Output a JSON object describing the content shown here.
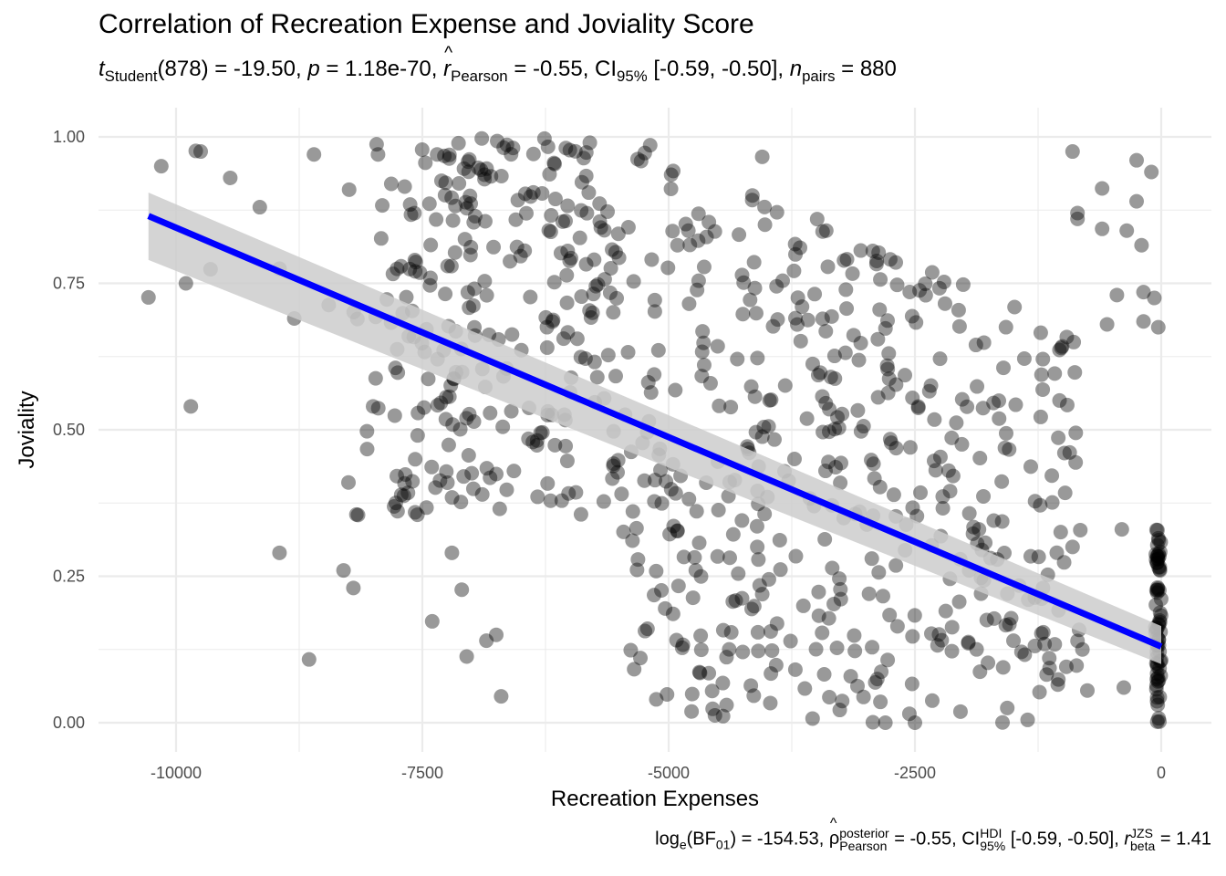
{
  "chart_data": {
    "type": "scatter",
    "title": "Correlation of Recreation Expense and Joviality Score",
    "subtitle": {
      "t_label": "t",
      "t_sub": "Student",
      "df": "(878)",
      "t_value": "= -19.50,",
      "p_label": "p",
      "p_value": "= 1.18e-70,",
      "r_label": "r",
      "r_sub": "Pearson",
      "r_value": "= -0.55,",
      "ci_label": "CI",
      "ci_sub": "95%",
      "ci_value": "[-0.59, -0.50],",
      "n_label": "n",
      "n_sub": "pairs",
      "n_value": "= 880"
    },
    "caption": {
      "log_label": "log",
      "log_sub": "e",
      "bf_label": "(BF",
      "bf_sub": "01",
      "bf_value": ") = -154.53,",
      "rho_label": "ρ",
      "rho_sup": "posterior",
      "rho_sub": "Pearson",
      "rho_value": "= -0.55,",
      "ci_label": "CI",
      "ci_sup": "HDI",
      "ci_sub": "95%",
      "ci_value": "[-0.59, -0.50],",
      "rb_label": "r",
      "rb_sup": "JZS",
      "rb_sub": "beta",
      "rb_value": "= 1.41"
    },
    "xlabel": "Recreation Expenses",
    "ylabel": "Joviality",
    "xlim": [
      -10600,
      300
    ],
    "ylim": [
      -0.04,
      1.04
    ],
    "x_ticks": [
      -10000,
      -7500,
      -5000,
      -2500,
      0
    ],
    "x_tick_labels": [
      "-10000",
      "-7500",
      "-5000",
      "-2500",
      "0"
    ],
    "y_ticks": [
      0,
      0.25,
      0.5,
      0.75,
      1.0
    ],
    "y_tick_labels": [
      "0.00",
      "0.25",
      "0.50",
      "0.75",
      "1.00"
    ],
    "grid": true,
    "n_points": 880,
    "point_color": "#000000",
    "point_alpha": 0.4,
    "regression": {
      "color": "#0000ff",
      "band_color": "#cccccc",
      "x_range": [
        -10280,
        0
      ],
      "y_start": 0.865,
      "y_end": 0.13,
      "ci_start": [
        0.79,
        0.905
      ],
      "ci_end": [
        0.1,
        0.165
      ]
    },
    "highlight_points": [
      [
        -10280,
        0.726
      ],
      [
        -10150,
        0.95
      ],
      [
        -9900,
        0.75
      ],
      [
        -9850,
        0.54
      ],
      [
        -9800,
        0.976
      ],
      [
        -9750,
        0.975
      ],
      [
        -9650,
        0.774
      ],
      [
        -9450,
        0.93
      ],
      [
        -9150,
        0.88
      ],
      [
        -8950,
        0.29
      ],
      [
        -8950,
        0.775
      ],
      [
        -8800,
        0.69
      ],
      [
        -8650,
        0.108
      ],
      [
        -8600,
        0.97
      ],
      [
        -8450,
        0.713
      ],
      [
        -8300,
        0.26
      ],
      [
        -8250,
        0.41
      ],
      [
        -8200,
        0.23
      ],
      [
        -8000,
        0.54
      ],
      [
        -7950,
        0.97
      ],
      [
        -7600,
        0.412
      ],
      [
        -7550,
        0.355
      ],
      [
        -7400,
        0.173
      ],
      [
        -7350,
        0.97
      ],
      [
        -7200,
        0.29
      ],
      [
        -7100,
        0.227
      ],
      [
        -7050,
        0.113
      ],
      [
        -6850,
        0.14
      ],
      [
        -6750,
        0.15
      ],
      [
        -6700,
        0.045
      ],
      [
        -5800,
        0.99
      ],
      [
        -4800,
        0.84
      ],
      [
        -4050,
        0.966
      ],
      [
        -4150,
        0.9
      ],
      [
        -3400,
        0.84
      ],
      [
        -3050,
        0.806
      ],
      [
        -3050,
        0.648
      ],
      [
        -2800,
        0.0
      ],
      [
        -2500,
        0.0
      ],
      [
        -900,
        0.975
      ],
      [
        -850,
        0.87
      ],
      [
        -850,
        0.86
      ],
      [
        -600,
        0.912
      ],
      [
        -600,
        0.843
      ],
      [
        -550,
        0.68
      ],
      [
        -450,
        0.73
      ],
      [
        -350,
        0.84
      ],
      [
        -250,
        0.89
      ],
      [
        -250,
        0.96
      ],
      [
        -200,
        0.815
      ],
      [
        -180,
        0.735
      ],
      [
        -180,
        0.685
      ],
      [
        -100,
        0.94
      ],
      [
        -70,
        0.725
      ],
      [
        -30,
        0.675
      ],
      [
        -1950,
        0.26
      ],
      [
        -1850,
        0.33
      ],
      [
        -1700,
        0.345
      ],
      [
        -1500,
        0.14
      ],
      [
        -1350,
        0.21
      ],
      [
        -1200,
        0.23
      ],
      [
        -1050,
        0.065
      ],
      [
        -900,
        0.3
      ],
      [
        -800,
        0.125
      ],
      [
        -750,
        0.055
      ],
      [
        -400,
        0.33
      ],
      [
        -380,
        0.06
      ]
    ]
  }
}
